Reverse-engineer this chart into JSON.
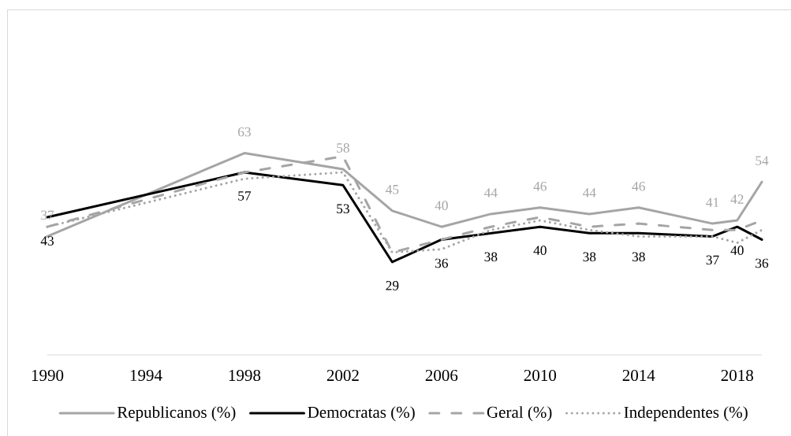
{
  "chart_data": {
    "type": "line",
    "x": [
      1990,
      1998,
      2002,
      2004,
      2006,
      2008,
      2010,
      2012,
      2014,
      2017,
      2018,
      2019
    ],
    "xlim": [
      1990,
      2019
    ],
    "xticks": [
      1990,
      1994,
      1998,
      2002,
      2006,
      2010,
      2014,
      2018
    ],
    "tick_labels": "x",
    "legend": "bottom",
    "series": [
      {
        "name": "Republicanos (%)",
        "color": "#a5a5a5",
        "line_style": "solid",
        "values": [
          37,
          63,
          58,
          45,
          40,
          44,
          46,
          44,
          46,
          41,
          42,
          54
        ],
        "value_labels": [
          "37",
          "63",
          "58",
          "45",
          "40",
          "44",
          "46",
          "44",
          "46",
          "41",
          "42",
          "54"
        ]
      },
      {
        "name": "Democratas (%)",
        "color": "#000000",
        "line_style": "solid",
        "values": [
          43,
          57,
          53,
          29,
          36,
          38,
          40,
          38,
          38,
          37,
          40,
          36
        ],
        "value_labels": [
          "43",
          "57",
          "53",
          "29",
          "36",
          "38",
          "40",
          "38",
          "38",
          "37",
          "40",
          "36"
        ]
      },
      {
        "name": "Geral (%)",
        "color": "#a5a5a5",
        "line_style": "dashed",
        "values": [
          40,
          57,
          62,
          32,
          36,
          40,
          43,
          40,
          41,
          39,
          39,
          42
        ]
      },
      {
        "name": "Independentes (%)",
        "color": "#a5a5a5",
        "line_style": "dotted",
        "values": [
          40,
          55,
          57,
          32,
          33,
          39,
          42,
          39,
          37,
          37,
          35,
          39
        ]
      }
    ]
  }
}
